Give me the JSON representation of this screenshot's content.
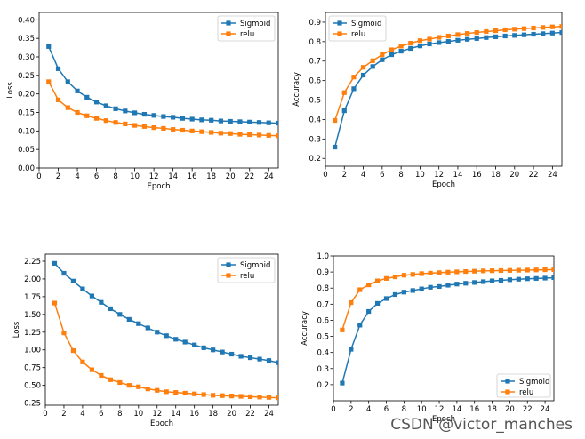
{
  "colors": {
    "sigmoid": "#1f77b4",
    "relu": "#ff7f0e"
  },
  "watermark": "CSDN @victor_manches",
  "chart_data": [
    {
      "type": "line",
      "xlabel": "Epoch",
      "ylabel": "Loss",
      "xlim": [
        0,
        25
      ],
      "ylim": [
        0,
        0.42
      ],
      "xticks": [
        0,
        2,
        4,
        6,
        8,
        10,
        12,
        14,
        16,
        18,
        20,
        22,
        24
      ],
      "yticks": [
        0.0,
        0.05,
        0.1,
        0.15,
        0.2,
        0.25,
        0.3,
        0.35,
        0.4
      ],
      "ytick_labels": [
        "0.00",
        "0.05",
        "0.10",
        "0.15",
        "0.20",
        "0.25",
        "0.30",
        "0.35",
        "0.40"
      ],
      "legend_position": "top-right",
      "x": [
        1,
        2,
        3,
        4,
        5,
        6,
        7,
        8,
        9,
        10,
        11,
        12,
        13,
        14,
        15,
        16,
        17,
        18,
        19,
        20,
        21,
        22,
        23,
        24,
        25
      ],
      "series": [
        {
          "name": "Sigmoid",
          "values": [
            0.328,
            0.268,
            0.233,
            0.208,
            0.191,
            0.178,
            0.168,
            0.16,
            0.154,
            0.149,
            0.145,
            0.142,
            0.139,
            0.137,
            0.134,
            0.132,
            0.13,
            0.129,
            0.127,
            0.126,
            0.125,
            0.124,
            0.123,
            0.122,
            0.121
          ]
        },
        {
          "name": "relu",
          "values": [
            0.233,
            0.184,
            0.163,
            0.15,
            0.141,
            0.134,
            0.128,
            0.123,
            0.119,
            0.115,
            0.112,
            0.109,
            0.107,
            0.104,
            0.102,
            0.1,
            0.098,
            0.096,
            0.094,
            0.093,
            0.091,
            0.09,
            0.089,
            0.088,
            0.087
          ]
        }
      ]
    },
    {
      "type": "line",
      "xlabel": "Epoch",
      "ylabel": "Accuracy",
      "xlim": [
        0,
        25
      ],
      "ylim": [
        0.16,
        0.95
      ],
      "xticks": [
        0,
        2,
        4,
        6,
        8,
        10,
        12,
        14,
        16,
        18,
        20,
        22,
        24
      ],
      "yticks": [
        0.2,
        0.3,
        0.4,
        0.5,
        0.6,
        0.7,
        0.8,
        0.9
      ],
      "ytick_labels": [
        "0.2",
        "0.3",
        "0.4",
        "0.5",
        "0.6",
        "0.7",
        "0.8",
        "0.9"
      ],
      "legend_position": "top-left",
      "x": [
        1,
        2,
        3,
        4,
        5,
        6,
        7,
        8,
        9,
        10,
        11,
        12,
        13,
        14,
        15,
        16,
        17,
        18,
        19,
        20,
        21,
        22,
        23,
        24,
        25
      ],
      "series": [
        {
          "name": "Sigmoid",
          "values": [
            0.258,
            0.445,
            0.558,
            0.628,
            0.672,
            0.707,
            0.733,
            0.751,
            0.765,
            0.778,
            0.788,
            0.795,
            0.801,
            0.807,
            0.812,
            0.816,
            0.821,
            0.825,
            0.829,
            0.832,
            0.835,
            0.838,
            0.841,
            0.844,
            0.847
          ]
        },
        {
          "name": "relu",
          "values": [
            0.395,
            0.538,
            0.618,
            0.668,
            0.702,
            0.733,
            0.758,
            0.777,
            0.792,
            0.805,
            0.813,
            0.822,
            0.829,
            0.836,
            0.842,
            0.847,
            0.852,
            0.856,
            0.861,
            0.864,
            0.867,
            0.87,
            0.873,
            0.876,
            0.878
          ]
        }
      ]
    },
    {
      "type": "line",
      "xlabel": "Epoch",
      "ylabel": "Loss",
      "xlim": [
        0,
        25
      ],
      "ylim": [
        0.22,
        2.35
      ],
      "xticks": [
        0,
        2,
        4,
        6,
        8,
        10,
        12,
        14,
        16,
        18,
        20,
        22,
        24
      ],
      "yticks": [
        0.25,
        0.5,
        0.75,
        1.0,
        1.25,
        1.5,
        1.75,
        2.0,
        2.25
      ],
      "ytick_labels": [
        "0.25",
        "0.50",
        "0.75",
        "1.00",
        "1.25",
        "1.50",
        "1.75",
        "2.00",
        "2.25"
      ],
      "legend_position": "top-right",
      "x": [
        1,
        2,
        3,
        4,
        5,
        6,
        7,
        8,
        9,
        10,
        11,
        12,
        13,
        14,
        15,
        16,
        17,
        18,
        19,
        20,
        21,
        22,
        23,
        24,
        25
      ],
      "series": [
        {
          "name": "Sigmoid",
          "values": [
            2.22,
            2.08,
            1.97,
            1.86,
            1.76,
            1.67,
            1.58,
            1.5,
            1.43,
            1.37,
            1.31,
            1.25,
            1.2,
            1.15,
            1.11,
            1.07,
            1.03,
            1.0,
            0.97,
            0.94,
            0.91,
            0.89,
            0.87,
            0.85,
            0.82
          ]
        },
        {
          "name": "relu",
          "values": [
            1.66,
            1.24,
            0.99,
            0.83,
            0.72,
            0.64,
            0.58,
            0.54,
            0.5,
            0.48,
            0.45,
            0.43,
            0.41,
            0.4,
            0.39,
            0.38,
            0.37,
            0.36,
            0.355,
            0.35,
            0.345,
            0.34,
            0.335,
            0.33,
            0.325
          ]
        }
      ]
    },
    {
      "type": "line",
      "xlabel": "Epoch",
      "ylabel": "Accuracy",
      "xlim": [
        0,
        25
      ],
      "ylim": [
        0.1,
        1.0
      ],
      "xticks": [
        0,
        2,
        4,
        6,
        8,
        10,
        12,
        14,
        16,
        18,
        20,
        22,
        24
      ],
      "yticks": [
        0.2,
        0.3,
        0.4,
        0.5,
        0.6,
        0.7,
        0.8,
        0.9,
        1.0
      ],
      "ytick_labels": [
        "0.2",
        "0.3",
        "0.4",
        "0.5",
        "0.6",
        "0.7",
        "0.8",
        "0.9",
        "1.0"
      ],
      "legend_position": "bottom-right",
      "x": [
        1,
        2,
        3,
        4,
        5,
        6,
        7,
        8,
        9,
        10,
        11,
        12,
        13,
        14,
        15,
        16,
        17,
        18,
        19,
        20,
        21,
        22,
        23,
        24,
        25
      ],
      "series": [
        {
          "name": "Sigmoid",
          "values": [
            0.21,
            0.42,
            0.57,
            0.655,
            0.705,
            0.735,
            0.76,
            0.775,
            0.785,
            0.795,
            0.805,
            0.81,
            0.818,
            0.825,
            0.83,
            0.835,
            0.84,
            0.845,
            0.848,
            0.852,
            0.855,
            0.858,
            0.86,
            0.862,
            0.865
          ]
        },
        {
          "name": "relu",
          "values": [
            0.54,
            0.71,
            0.79,
            0.82,
            0.845,
            0.86,
            0.87,
            0.88,
            0.885,
            0.89,
            0.893,
            0.896,
            0.899,
            0.901,
            0.903,
            0.905,
            0.907,
            0.908,
            0.909,
            0.91,
            0.911,
            0.912,
            0.913,
            0.914,
            0.915
          ]
        }
      ]
    }
  ]
}
